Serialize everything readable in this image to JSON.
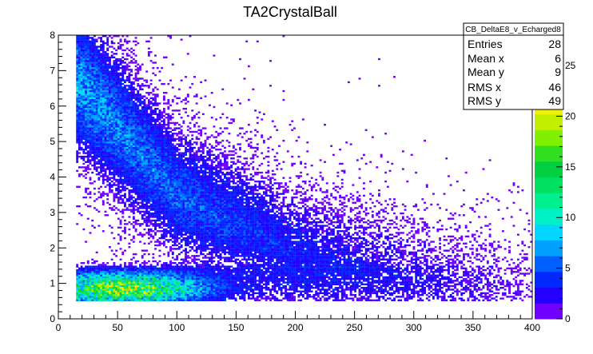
{
  "chart_data": {
    "type": "heatmap",
    "title": "TA2CrystalBall",
    "xlabel": "",
    "ylabel": "",
    "xlim": [
      0,
      400
    ],
    "ylim": [
      0,
      8
    ],
    "x_ticks": [
      "0",
      "50",
      "100",
      "150",
      "200",
      "250",
      "300",
      "350",
      "400"
    ],
    "y_ticks": [
      "0",
      "1",
      "2",
      "3",
      "4",
      "5",
      "6",
      "7",
      "8"
    ],
    "color_scale": {
      "zlim": [
        0,
        28
      ],
      "ticks": [
        "0",
        "5",
        "10",
        "15",
        "20",
        "25"
      ],
      "palette": [
        "#7000ff",
        "#2400ff",
        "#0028ff",
        "#0060ff",
        "#00a0ff",
        "#00d6ff",
        "#00f0c8",
        "#00f090",
        "#00e060",
        "#00d040",
        "#30e020",
        "#80f000",
        "#c0f000",
        "#f0f000",
        "#ffc000",
        "#ff8000",
        "#ff4000",
        "#ff0000"
      ]
    },
    "bins": {
      "x_min": 15,
      "x_max": 400,
      "y_min": 0,
      "y_max": 8
    },
    "distribution": {
      "dense_region": {
        "x": [
          15,
          120
        ],
        "y": [
          0.5,
          1.3
        ],
        "peak_counts": 28
      },
      "band": {
        "description": "1/E falloff",
        "y_at_x": [
          [
            20,
            6.5
          ],
          [
            100,
            3.5
          ],
          [
            200,
            2.0
          ],
          [
            300,
            1.3
          ],
          [
            400,
            0.9
          ]
        ]
      },
      "floor_y": 0.5
    },
    "stats_box": {
      "name": "CB_DeltaE8_v_Echarged8",
      "rows": [
        {
          "label": "Entries",
          "value": "28"
        },
        {
          "label": "Mean x",
          "value": "6"
        },
        {
          "label": "Mean y",
          "value": "9"
        },
        {
          "label": "RMS x",
          "value": "46"
        },
        {
          "label": "RMS y",
          "value": "49"
        }
      ]
    }
  }
}
